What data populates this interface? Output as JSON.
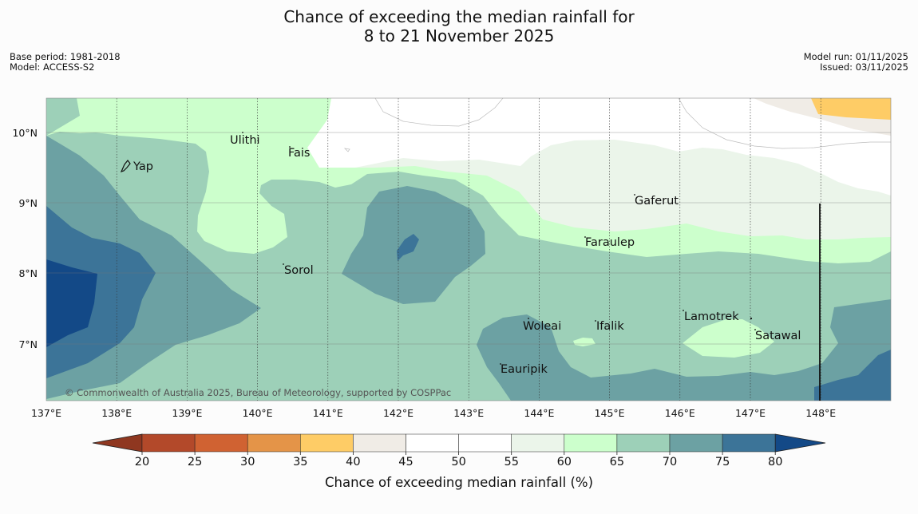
{
  "title": {
    "line1": "Chance of exceeding the median rainfall for",
    "line2": "8 to 21 November 2025"
  },
  "meta_left": {
    "base_period": "Base period: 1981-2018",
    "model": "Model: ACCESS-S2"
  },
  "meta_right": {
    "model_run": "Model run: 01/11/2025",
    "issued": "Issued: 03/11/2025"
  },
  "map": {
    "lon_labels": [
      "137°E",
      "138°E",
      "139°E",
      "140°E",
      "141°E",
      "142°E",
      "143°E",
      "144°E",
      "145°E",
      "146°E",
      "147°E",
      "148°E"
    ],
    "lat_labels": [
      "10°N",
      "9°N",
      "8°N",
      "7°N"
    ],
    "places": [
      "Ulithi",
      "Fais",
      "Yap",
      "Gaferut",
      "Faraulep",
      "Sorol",
      "Woleai",
      "Ifalik",
      "Lamotrek",
      "Satawal",
      "Eauripik"
    ],
    "copyright": "© Commonwealth of Australia 2025, Bureau of Meteorology, supported by COSPPac"
  },
  "colorbar": {
    "ticks": [
      "20",
      "25",
      "30",
      "35",
      "40",
      "45",
      "50",
      "55",
      "60",
      "65",
      "70",
      "75",
      "80"
    ],
    "title": "Chance of exceeding median rainfall (%)",
    "colors": {
      "lt20": "#8f3720",
      "c20_25": "#b3492a",
      "c25_30": "#d06232",
      "c30_35": "#e49448",
      "c35_40": "#fecc66",
      "c40_45": "#f0ece6",
      "c45_50": "#ffffff",
      "c50_55": "#ffffff",
      "c55_60": "#ebf5ea",
      "c60_65": "#ccffcc",
      "c65_70": "#9dd0b8",
      "c70_75": "#6ca1a3",
      "c75_80": "#3c7498",
      "gt80": "#134987"
    }
  }
}
